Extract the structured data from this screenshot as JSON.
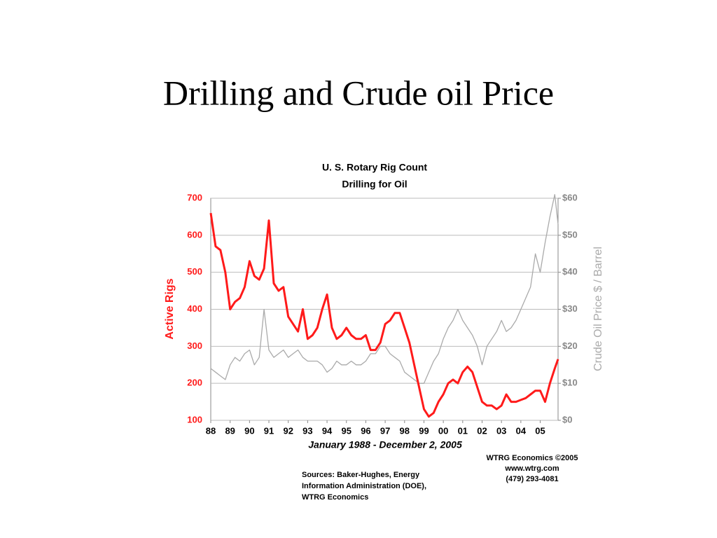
{
  "title": "Drilling and Crude oil Price",
  "chart_data": {
    "type": "line",
    "title": "U. S. Rotary Rig Count",
    "subtitle": "Drilling for Oil",
    "ylabel": "Active Rigs",
    "y2label": "Crude Oil Price $ / Barrel",
    "xlabel": "January 1988 - December 2, 2005",
    "sources": [
      "Sources: Baker-Hughes, Energy",
      "Information Administration (DOE),",
      "WTRG Economics"
    ],
    "credits": [
      "WTRG Economics  ©2005",
      "www.wtrg.com",
      "(479) 293-4081"
    ],
    "grid": true,
    "x": [
      1988,
      1988.25,
      1988.5,
      1988.75,
      1989,
      1989.25,
      1989.5,
      1989.75,
      1990,
      1990.25,
      1990.5,
      1990.75,
      1991,
      1991.25,
      1991.5,
      1991.75,
      1992,
      1992.25,
      1992.5,
      1992.75,
      1993,
      1993.25,
      1993.5,
      1993.75,
      1994,
      1994.25,
      1994.5,
      1994.75,
      1995,
      1995.25,
      1995.5,
      1995.75,
      1996,
      1996.25,
      1996.5,
      1996.75,
      1997,
      1997.25,
      1997.5,
      1997.75,
      1998,
      1998.25,
      1998.5,
      1998.75,
      1999,
      1999.25,
      1999.5,
      1999.75,
      2000,
      2000.25,
      2000.5,
      2000.75,
      2001,
      2001.25,
      2001.5,
      2001.75,
      2002,
      2002.25,
      2002.5,
      2002.75,
      2003,
      2003.25,
      2003.5,
      2003.75,
      2004,
      2004.25,
      2004.5,
      2004.75,
      2005,
      2005.25,
      2005.5,
      2005.75,
      2005.92
    ],
    "xlim": [
      1988,
      2005.92
    ],
    "xticks": [
      {
        "value": 1988,
        "label": "88"
      },
      {
        "value": 1989,
        "label": "89"
      },
      {
        "value": 1990,
        "label": "90"
      },
      {
        "value": 1991,
        "label": "91"
      },
      {
        "value": 1992,
        "label": "92"
      },
      {
        "value": 1993,
        "label": "93"
      },
      {
        "value": 1994,
        "label": "94"
      },
      {
        "value": 1995,
        "label": "95"
      },
      {
        "value": 1996,
        "label": "96"
      },
      {
        "value": 1997,
        "label": "97"
      },
      {
        "value": 1998,
        "label": "98"
      },
      {
        "value": 1999,
        "label": "99"
      },
      {
        "value": 2000,
        "label": "00"
      },
      {
        "value": 2001,
        "label": "01"
      },
      {
        "value": 2002,
        "label": "02"
      },
      {
        "value": 2003,
        "label": "03"
      },
      {
        "value": 2004,
        "label": "04"
      },
      {
        "value": 2005,
        "label": "05"
      }
    ],
    "ylim": [
      100,
      700
    ],
    "yticks": [
      100,
      200,
      300,
      400,
      500,
      600,
      700
    ],
    "y2lim": [
      0,
      60
    ],
    "y2ticks": [
      {
        "value": 0,
        "label": "$0"
      },
      {
        "value": 10,
        "label": "$10"
      },
      {
        "value": 20,
        "label": "$20"
      },
      {
        "value": 30,
        "label": "$30"
      },
      {
        "value": 40,
        "label": "$40"
      },
      {
        "value": 50,
        "label": "$50"
      },
      {
        "value": 60,
        "label": "$60"
      }
    ],
    "series": [
      {
        "name": "Active Rigs",
        "color": "#ff1a1a",
        "axis": "y",
        "values": [
          660,
          570,
          560,
          500,
          400,
          420,
          430,
          460,
          530,
          490,
          480,
          510,
          640,
          470,
          450,
          460,
          380,
          360,
          340,
          400,
          320,
          330,
          350,
          400,
          440,
          350,
          320,
          330,
          350,
          330,
          320,
          320,
          330,
          290,
          290,
          310,
          360,
          370,
          390,
          390,
          350,
          310,
          250,
          190,
          130,
          110,
          120,
          150,
          170,
          200,
          210,
          200,
          230,
          245,
          230,
          190,
          150,
          140,
          140,
          130,
          140,
          170,
          150,
          150,
          155,
          160,
          170,
          180,
          180,
          150,
          200,
          240,
          265
        ]
      },
      {
        "name": "Crude Oil Price",
        "color": "#aaaaaa",
        "axis": "y2",
        "values": [
          14,
          13,
          12,
          11,
          15,
          17,
          16,
          18,
          19,
          15,
          17,
          30,
          19,
          17,
          18,
          19,
          17,
          18,
          19,
          17,
          16,
          16,
          16,
          15,
          13,
          14,
          16,
          15,
          15,
          16,
          15,
          15,
          16,
          18,
          18,
          20,
          20,
          18,
          17,
          16,
          13,
          12,
          11,
          10,
          10,
          13,
          16,
          18,
          22,
          25,
          27,
          30,
          27,
          25,
          23,
          20,
          15,
          20,
          22,
          24,
          27,
          24,
          25,
          27,
          30,
          33,
          36,
          45,
          40,
          48,
          55,
          61,
          53
        ]
      }
    ]
  }
}
